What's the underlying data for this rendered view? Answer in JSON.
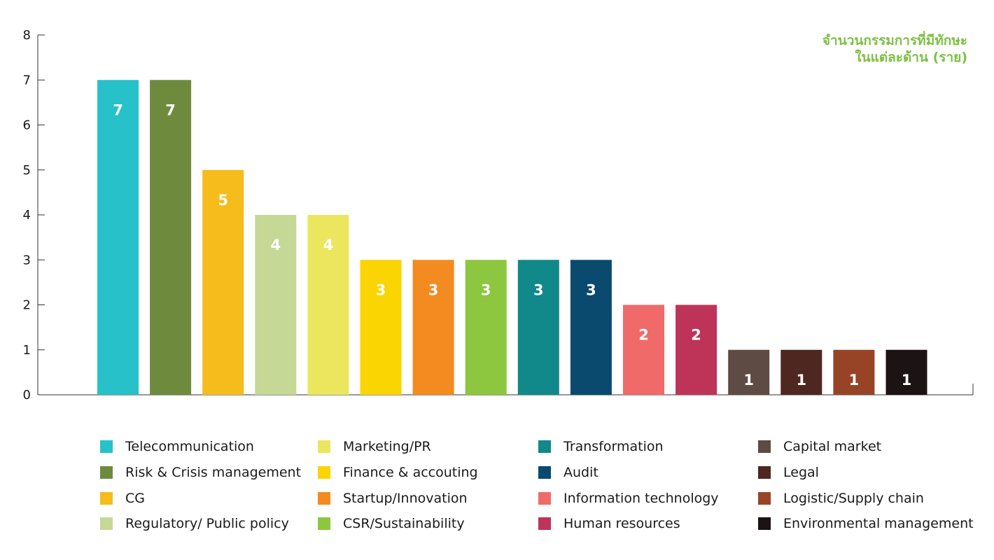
{
  "chart_data": {
    "type": "bar",
    "title_lines": [
      "จำนวนกรรมการที่มีทักษะ",
      "ในแต่ละด้าน (ราย)"
    ],
    "xlabel": "",
    "ylabel": "",
    "ylim": [
      0,
      8
    ],
    "yticks": [
      0,
      1,
      2,
      3,
      4,
      5,
      6,
      7,
      8
    ],
    "grid": false,
    "legend_position": "bottom",
    "categories": [
      "Telecommunication",
      "Risk & Crisis management",
      "CG",
      "Regulatory/ Public policy",
      "Marketing/PR",
      "Finance & accouting",
      "Startup/Innovation",
      "CSR/Sustainability",
      "Transformation",
      "Audit",
      "Information technology",
      "Human resources",
      "Capital market",
      "Legal",
      "Logistic/Supply chain",
      "Environmental management"
    ],
    "values": [
      7,
      7,
      5,
      4,
      4,
      3,
      3,
      3,
      3,
      3,
      2,
      2,
      1,
      1,
      1,
      1
    ],
    "colors": [
      "#26c1c9",
      "#6e8b3d",
      "#f5bc1c",
      "#c6d895",
      "#ece65f",
      "#fbd502",
      "#f38b21",
      "#8dc63f",
      "#11888a",
      "#0b4a6f",
      "#f16a6a",
      "#be3458",
      "#5e4b44",
      "#4e2720",
      "#974426",
      "#1c1314"
    ],
    "title_color": "#7dc142"
  }
}
